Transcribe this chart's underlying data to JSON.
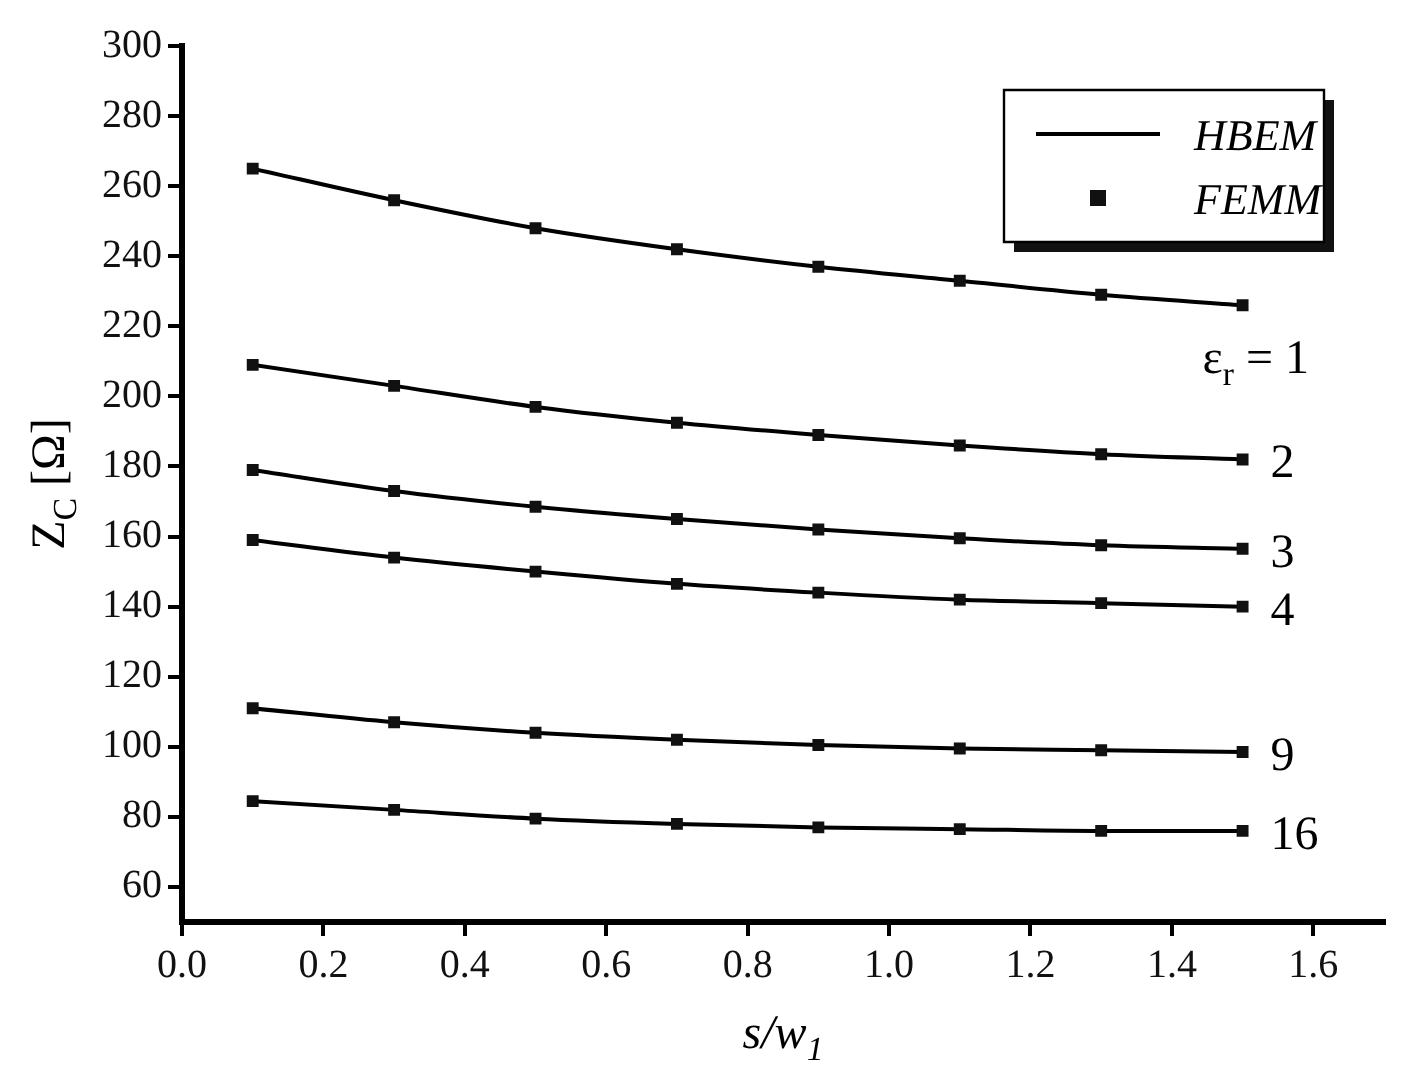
{
  "chart_data": {
    "type": "line",
    "xlabel": "s/w$_{1}$",
    "ylabel": "Z$_{C}$ [Ω]",
    "x": [
      0.1,
      0.3,
      0.5,
      0.7,
      0.9,
      1.1,
      1.3,
      1.5
    ],
    "series": [
      {
        "name": "HBEM",
        "color": "#000000",
        "marker": "none",
        "values": [
          265,
          256,
          248,
          242,
          237,
          233,
          229,
          226
        ]
      },
      {
        "color": "#000000",
        "marker": "none",
        "values": [
          209,
          203,
          197,
          192.5,
          189,
          186,
          183.5,
          182
        ]
      },
      {
        "color": "#000000",
        "marker": "none",
        "values": [
          179,
          173,
          168.5,
          165,
          162,
          159.5,
          157.5,
          156.5
        ]
      },
      {
        "color": "#000000",
        "marker": "none",
        "values": [
          159,
          154,
          150,
          146.5,
          144,
          142,
          141,
          140
        ]
      },
      {
        "color": "#000000",
        "marker": "none",
        "values": [
          111,
          107,
          104,
          102,
          100.5,
          99.5,
          99,
          98.5
        ]
      },
      {
        "color": "#000000",
        "marker": "none",
        "values": [
          84.5,
          82,
          79.5,
          78,
          77,
          76.5,
          76,
          76
        ]
      },
      {
        "name": "FEMM",
        "type": "scatter",
        "color": "#111111",
        "marker": "square",
        "values": [
          265,
          256,
          248,
          242,
          237,
          233,
          229,
          226
        ]
      },
      {
        "type": "scatter",
        "color": "#111111",
        "marker": "square",
        "values": [
          209,
          203,
          197,
          192.5,
          189,
          186,
          183.5,
          182
        ]
      },
      {
        "type": "scatter",
        "color": "#111111",
        "marker": "square",
        "values": [
          179,
          173,
          168.5,
          165,
          162,
          159.5,
          157.5,
          156.5
        ]
      },
      {
        "type": "scatter",
        "color": "#111111",
        "marker": "square",
        "values": [
          159,
          154,
          150,
          146.5,
          144,
          142,
          141,
          140
        ]
      },
      {
        "type": "scatter",
        "color": "#111111",
        "marker": "square",
        "values": [
          111,
          107,
          104,
          102,
          100.5,
          99.5,
          99,
          98.5
        ]
      },
      {
        "type": "scatter",
        "color": "#111111",
        "marker": "square",
        "values": [
          84.5,
          82,
          79.5,
          78,
          77,
          76.5,
          76,
          76
        ]
      }
    ],
    "annotations": [
      "ε$_{r}$ = 1",
      "2",
      "3",
      "4",
      "9",
      "16"
    ],
    "xlim": [
      0,
      1.7
    ],
    "xticks": [
      {
        "value": 0,
        "label": "0.0"
      },
      0.2,
      0.4,
      0.6,
      0.8,
      {
        "value": 1,
        "label": "1.0"
      },
      1.2,
      1.4,
      1.6
    ],
    "ylim": [
      50,
      300
    ],
    "yticks": [
      60,
      80,
      100,
      120,
      140,
      160,
      180,
      200,
      220,
      240,
      260,
      280,
      300
    ],
    "grid": false,
    "legend": "top right"
  }
}
